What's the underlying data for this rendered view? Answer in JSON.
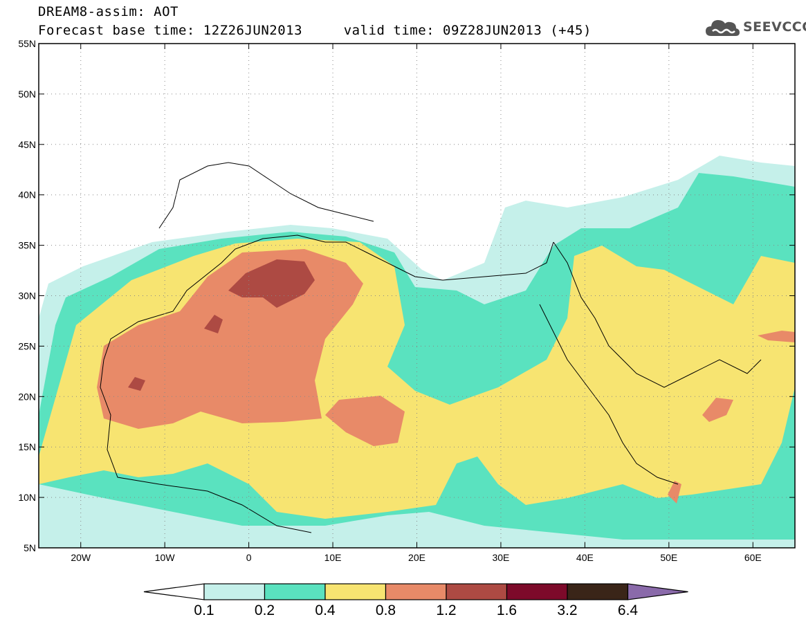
{
  "header": {
    "line1": "DREAM8-assim: AOT",
    "line2": "Forecast base time: 12Z26JUN2013     valid time: 09Z28JUN2013 (+45)"
  },
  "logo": {
    "text": "SEEVCCC",
    "icon": "cloud-icon",
    "color": "#555555"
  },
  "map": {
    "lon_range": [
      -25,
      65
    ],
    "lat_range": [
      5,
      55
    ],
    "lon_ticks": [
      {
        "value": -20,
        "label": "20W"
      },
      {
        "value": -10,
        "label": "10W"
      },
      {
        "value": 0,
        "label": "0"
      },
      {
        "value": 10,
        "label": "10E"
      },
      {
        "value": 20,
        "label": "20E"
      },
      {
        "value": 30,
        "label": "30E"
      },
      {
        "value": 40,
        "label": "40E"
      },
      {
        "value": 50,
        "label": "50E"
      },
      {
        "value": 60,
        "label": "60E"
      }
    ],
    "lat_ticks": [
      {
        "value": 55,
        "label": "55N"
      },
      {
        "value": 50,
        "label": "50N"
      },
      {
        "value": 45,
        "label": "45N"
      },
      {
        "value": 40,
        "label": "40N"
      },
      {
        "value": 35,
        "label": "35N"
      },
      {
        "value": 30,
        "label": "30N"
      },
      {
        "value": 25,
        "label": "25N"
      },
      {
        "value": 20,
        "label": "20N"
      },
      {
        "value": 15,
        "label": "15N"
      },
      {
        "value": 10,
        "label": "10N"
      },
      {
        "value": 5,
        "label": "5N"
      }
    ],
    "grid": true
  },
  "colorbar": {
    "labels": [
      "0.1",
      "0.2",
      "0.4",
      "0.8",
      "1.2",
      "1.6",
      "3.2",
      "6.4"
    ],
    "colors": [
      "#ffffff",
      "#c5f0ea",
      "#5ae2bf",
      "#f7e471",
      "#e88a68",
      "#ad4a43",
      "#7d0a2a",
      "#3a2518",
      "#8a6aaa"
    ]
  }
}
